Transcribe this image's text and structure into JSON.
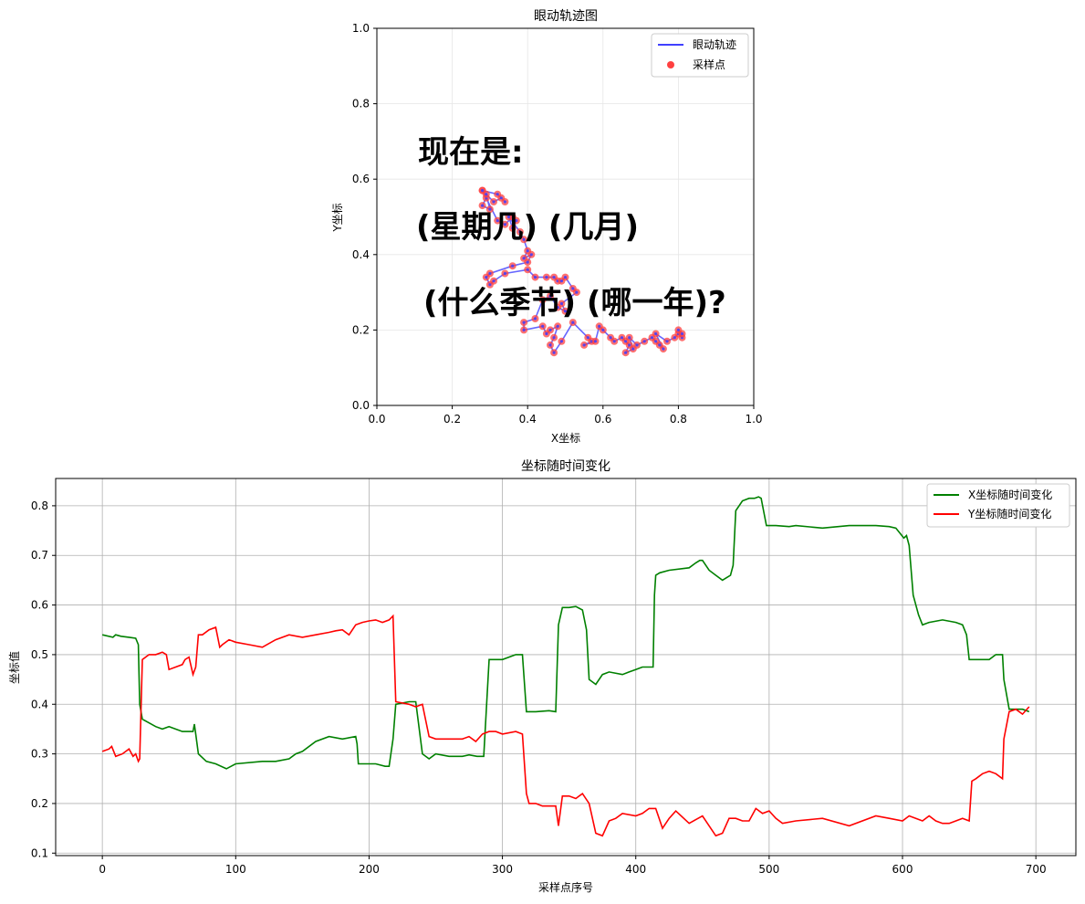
{
  "chart_data": [
    {
      "type": "line",
      "title": "眼动轨迹图",
      "xlabel": "X坐标",
      "ylabel": "Y坐标",
      "xlim": [
        0,
        1
      ],
      "ylim": [
        0,
        1
      ],
      "xticks": [
        "0.0",
        "0.2",
        "0.4",
        "0.6",
        "0.8",
        "1.0"
      ],
      "yticks": [
        "0.0",
        "0.2",
        "0.4",
        "0.6",
        "0.8",
        "1.0"
      ],
      "grid": true,
      "legend_position": "top-right",
      "series": [
        {
          "name": "眼动轨迹",
          "kind": "line",
          "color": "#4040ff"
        },
        {
          "name": "采样点",
          "kind": "scatter",
          "color": "#ff4040"
        }
      ],
      "annotation_lines": [
        "现在是:",
        "(星期几) (几月)",
        "(什么季节) (哪一年)?"
      ],
      "points": [
        [
          0.28,
          0.57
        ],
        [
          0.29,
          0.55
        ],
        [
          0.28,
          0.53
        ],
        [
          0.3,
          0.52
        ],
        [
          0.29,
          0.56
        ],
        [
          0.31,
          0.54
        ],
        [
          0.33,
          0.55
        ],
        [
          0.34,
          0.54
        ],
        [
          0.32,
          0.56
        ],
        [
          0.28,
          0.57
        ],
        [
          0.32,
          0.49
        ],
        [
          0.34,
          0.48
        ],
        [
          0.36,
          0.5
        ],
        [
          0.37,
          0.49
        ],
        [
          0.36,
          0.47
        ],
        [
          0.35,
          0.5
        ],
        [
          0.38,
          0.46
        ],
        [
          0.39,
          0.44
        ],
        [
          0.4,
          0.41
        ],
        [
          0.39,
          0.39
        ],
        [
          0.41,
          0.4
        ],
        [
          0.4,
          0.38
        ],
        [
          0.36,
          0.37
        ],
        [
          0.3,
          0.35
        ],
        [
          0.29,
          0.34
        ],
        [
          0.3,
          0.32
        ],
        [
          0.31,
          0.33
        ],
        [
          0.34,
          0.35
        ],
        [
          0.4,
          0.36
        ],
        [
          0.42,
          0.34
        ],
        [
          0.45,
          0.34
        ],
        [
          0.47,
          0.34
        ],
        [
          0.48,
          0.33
        ],
        [
          0.49,
          0.33
        ],
        [
          0.5,
          0.34
        ],
        [
          0.52,
          0.31
        ],
        [
          0.53,
          0.3
        ],
        [
          0.49,
          0.27
        ],
        [
          0.5,
          0.25
        ],
        [
          0.48,
          0.26
        ],
        [
          0.46,
          0.29
        ],
        [
          0.44,
          0.28
        ],
        [
          0.42,
          0.23
        ],
        [
          0.39,
          0.22
        ],
        [
          0.39,
          0.2
        ],
        [
          0.44,
          0.21
        ],
        [
          0.45,
          0.19
        ],
        [
          0.46,
          0.2
        ],
        [
          0.48,
          0.21
        ],
        [
          0.47,
          0.18
        ],
        [
          0.46,
          0.16
        ],
        [
          0.47,
          0.14
        ],
        [
          0.49,
          0.17
        ],
        [
          0.52,
          0.22
        ],
        [
          0.56,
          0.18
        ],
        [
          0.57,
          0.17
        ],
        [
          0.55,
          0.16
        ],
        [
          0.58,
          0.17
        ],
        [
          0.59,
          0.21
        ],
        [
          0.6,
          0.2
        ],
        [
          0.62,
          0.18
        ],
        [
          0.63,
          0.17
        ],
        [
          0.65,
          0.18
        ],
        [
          0.66,
          0.17
        ],
        [
          0.67,
          0.16
        ],
        [
          0.66,
          0.14
        ],
        [
          0.68,
          0.15
        ],
        [
          0.67,
          0.18
        ],
        [
          0.69,
          0.16
        ],
        [
          0.71,
          0.17
        ],
        [
          0.73,
          0.18
        ],
        [
          0.74,
          0.17
        ],
        [
          0.75,
          0.16
        ],
        [
          0.76,
          0.15
        ],
        [
          0.74,
          0.19
        ],
        [
          0.77,
          0.17
        ],
        [
          0.79,
          0.18
        ],
        [
          0.8,
          0.19
        ],
        [
          0.81,
          0.18
        ],
        [
          0.8,
          0.2
        ],
        [
          0.81,
          0.19
        ]
      ]
    },
    {
      "type": "line",
      "title": "坐标随时间变化",
      "xlabel": "采样点序号",
      "ylabel": "坐标值",
      "xlim": [
        -35,
        730
      ],
      "ylim": [
        0.095,
        0.855
      ],
      "xticks": [
        "0",
        "100",
        "200",
        "300",
        "400",
        "500",
        "600",
        "700"
      ],
      "yticks": [
        "0.1",
        "0.2",
        "0.3",
        "0.4",
        "0.5",
        "0.6",
        "0.7",
        "0.8"
      ],
      "grid": true,
      "legend_position": "top-right",
      "series": [
        {
          "name": "X坐标随时间变化",
          "color": "#008000",
          "x": [
            0,
            8,
            10,
            14,
            20,
            25,
            27,
            28,
            30,
            40,
            45,
            50,
            60,
            68,
            69,
            70,
            72,
            78,
            85,
            93,
            100,
            120,
            130,
            140,
            145,
            150,
            160,
            170,
            180,
            190,
            191,
            192,
            195,
            205,
            212,
            215,
            218,
            220,
            230,
            235,
            240,
            245,
            250,
            260,
            270,
            275,
            281,
            286,
            290,
            300,
            310,
            315,
            318,
            320,
            325,
            335,
            340,
            342,
            345,
            350,
            355,
            360,
            363,
            365,
            370,
            375,
            380,
            390,
            395,
            400,
            405,
            410,
            413,
            414,
            415,
            418,
            425,
            440,
            445,
            448,
            450,
            455,
            460,
            465,
            468,
            471,
            473,
            475,
            480,
            485,
            487,
            489,
            492,
            494,
            498,
            505,
            515,
            520,
            540,
            560,
            580,
            590,
            595,
            598,
            601,
            603,
            605,
            608,
            612,
            615,
            620,
            630,
            640,
            645,
            648,
            650,
            660,
            665,
            670,
            675,
            676,
            680,
            685,
            690,
            695
          ],
          "values": [
            0.54,
            0.535,
            0.54,
            0.537,
            0.535,
            0.533,
            0.52,
            0.4,
            0.37,
            0.355,
            0.35,
            0.355,
            0.345,
            0.345,
            0.36,
            0.34,
            0.3,
            0.285,
            0.28,
            0.27,
            0.28,
            0.285,
            0.285,
            0.29,
            0.3,
            0.305,
            0.325,
            0.335,
            0.33,
            0.335,
            0.32,
            0.28,
            0.28,
            0.28,
            0.275,
            0.275,
            0.33,
            0.4,
            0.405,
            0.405,
            0.3,
            0.29,
            0.3,
            0.295,
            0.295,
            0.298,
            0.295,
            0.295,
            0.49,
            0.49,
            0.5,
            0.5,
            0.385,
            0.385,
            0.385,
            0.387,
            0.385,
            0.56,
            0.595,
            0.595,
            0.597,
            0.59,
            0.55,
            0.45,
            0.44,
            0.46,
            0.465,
            0.46,
            0.465,
            0.47,
            0.475,
            0.475,
            0.475,
            0.62,
            0.66,
            0.665,
            0.67,
            0.675,
            0.685,
            0.69,
            0.69,
            0.67,
            0.66,
            0.65,
            0.655,
            0.66,
            0.68,
            0.79,
            0.81,
            0.815,
            0.815,
            0.815,
            0.818,
            0.815,
            0.76,
            0.76,
            0.758,
            0.76,
            0.755,
            0.76,
            0.76,
            0.758,
            0.755,
            0.745,
            0.735,
            0.74,
            0.72,
            0.62,
            0.58,
            0.56,
            0.565,
            0.57,
            0.565,
            0.56,
            0.54,
            0.49,
            0.49,
            0.49,
            0.5,
            0.5,
            0.45,
            0.39,
            0.39,
            0.39,
            0.385
          ]
        },
        {
          "name": "Y坐标随时间变化",
          "color": "#ff0000",
          "x": [
            0,
            5,
            7,
            10,
            15,
            20,
            23,
            25,
            27,
            28,
            30,
            35,
            40,
            45,
            48,
            50,
            55,
            60,
            62,
            65,
            68,
            70,
            72,
            75,
            80,
            85,
            88,
            90,
            95,
            100,
            110,
            120,
            130,
            140,
            150,
            160,
            170,
            175,
            180,
            185,
            190,
            195,
            200,
            205,
            210,
            215,
            218,
            220,
            230,
            235,
            240,
            245,
            250,
            260,
            270,
            275,
            280,
            285,
            290,
            295,
            300,
            310,
            315,
            318,
            320,
            325,
            330,
            340,
            342,
            345,
            350,
            355,
            360,
            365,
            370,
            375,
            380,
            385,
            390,
            400,
            405,
            410,
            415,
            420,
            425,
            430,
            440,
            450,
            455,
            460,
            465,
            470,
            475,
            480,
            485,
            490,
            495,
            500,
            505,
            510,
            520,
            540,
            560,
            580,
            590,
            600,
            605,
            610,
            615,
            620,
            625,
            630,
            635,
            640,
            645,
            650,
            652,
            655,
            660,
            665,
            670,
            675,
            676,
            680,
            685,
            690,
            695
          ],
          "values": [
            0.305,
            0.31,
            0.315,
            0.295,
            0.3,
            0.31,
            0.295,
            0.3,
            0.285,
            0.29,
            0.49,
            0.5,
            0.5,
            0.505,
            0.5,
            0.47,
            0.475,
            0.48,
            0.49,
            0.495,
            0.46,
            0.475,
            0.54,
            0.54,
            0.55,
            0.555,
            0.515,
            0.52,
            0.53,
            0.525,
            0.52,
            0.515,
            0.53,
            0.54,
            0.535,
            0.54,
            0.545,
            0.548,
            0.55,
            0.54,
            0.56,
            0.565,
            0.568,
            0.57,
            0.565,
            0.57,
            0.578,
            0.405,
            0.4,
            0.395,
            0.4,
            0.335,
            0.33,
            0.33,
            0.33,
            0.335,
            0.325,
            0.34,
            0.345,
            0.345,
            0.34,
            0.345,
            0.34,
            0.22,
            0.2,
            0.2,
            0.195,
            0.195,
            0.155,
            0.215,
            0.215,
            0.21,
            0.22,
            0.2,
            0.14,
            0.135,
            0.165,
            0.17,
            0.18,
            0.175,
            0.18,
            0.19,
            0.19,
            0.15,
            0.17,
            0.185,
            0.16,
            0.175,
            0.155,
            0.135,
            0.14,
            0.17,
            0.17,
            0.165,
            0.165,
            0.19,
            0.18,
            0.185,
            0.17,
            0.16,
            0.165,
            0.17,
            0.155,
            0.175,
            0.17,
            0.165,
            0.175,
            0.17,
            0.165,
            0.175,
            0.165,
            0.16,
            0.16,
            0.165,
            0.17,
            0.165,
            0.245,
            0.25,
            0.26,
            0.265,
            0.26,
            0.25,
            0.33,
            0.385,
            0.39,
            0.38,
            0.395
          ]
        }
      ]
    }
  ]
}
